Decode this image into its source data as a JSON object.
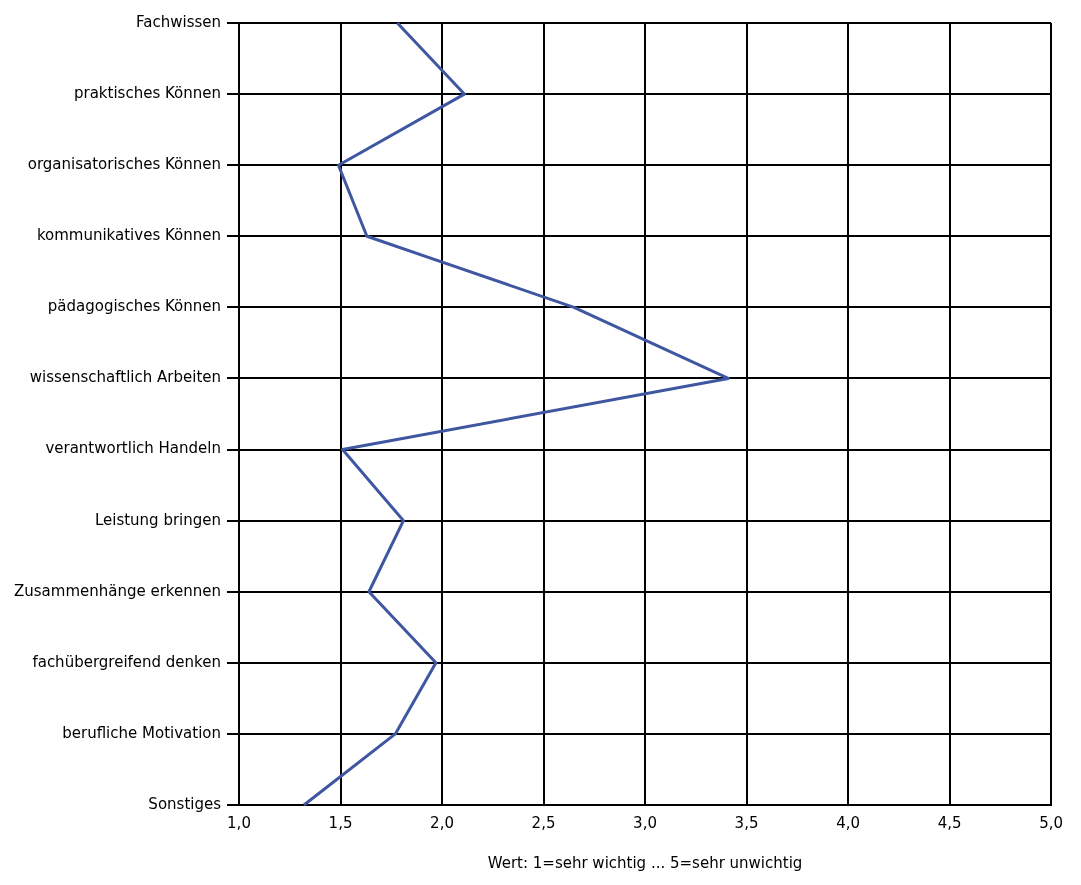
{
  "chart_data": {
    "type": "line",
    "orientation": "horizontal",
    "xlabel": "Wert: 1=sehr wichtig ... 5=sehr unwichtig",
    "categories": [
      "Fachwissen",
      "praktisches Können",
      "organisatorisches Können",
      "kommunikatives Können",
      "pädagogisches Können",
      "wissenschaftlich Arbeiten",
      "verantwortlich Handeln",
      "Leistung bringen",
      "Zusammenhänge erkennen",
      "fachübergreifend denken",
      "berufliche Motivation",
      "Sonstiges"
    ],
    "series": [
      {
        "color": "#3f56a0",
        "values": [
          1.78,
          2.11,
          1.49,
          1.63,
          2.65,
          3.41,
          1.51,
          1.81,
          1.64,
          1.97,
          1.77,
          1.32
        ]
      }
    ],
    "xlim": [
      1,
      5
    ],
    "xticks": [
      {
        "value": 1,
        "label": "1,0"
      },
      {
        "value": 1.5,
        "label": "1,5"
      },
      {
        "value": 2,
        "label": "2,0"
      },
      {
        "value": 2.5,
        "label": "2,5"
      },
      {
        "value": 3,
        "label": "3,0"
      },
      {
        "value": 3.5,
        "label": "3,5"
      },
      {
        "value": 4,
        "label": "4,0"
      },
      {
        "value": 4.5,
        "label": "4,5"
      },
      {
        "value": 5,
        "label": "5,0"
      }
    ],
    "grid": true,
    "legend": false,
    "marker": "none",
    "line_style": "solid"
  }
}
